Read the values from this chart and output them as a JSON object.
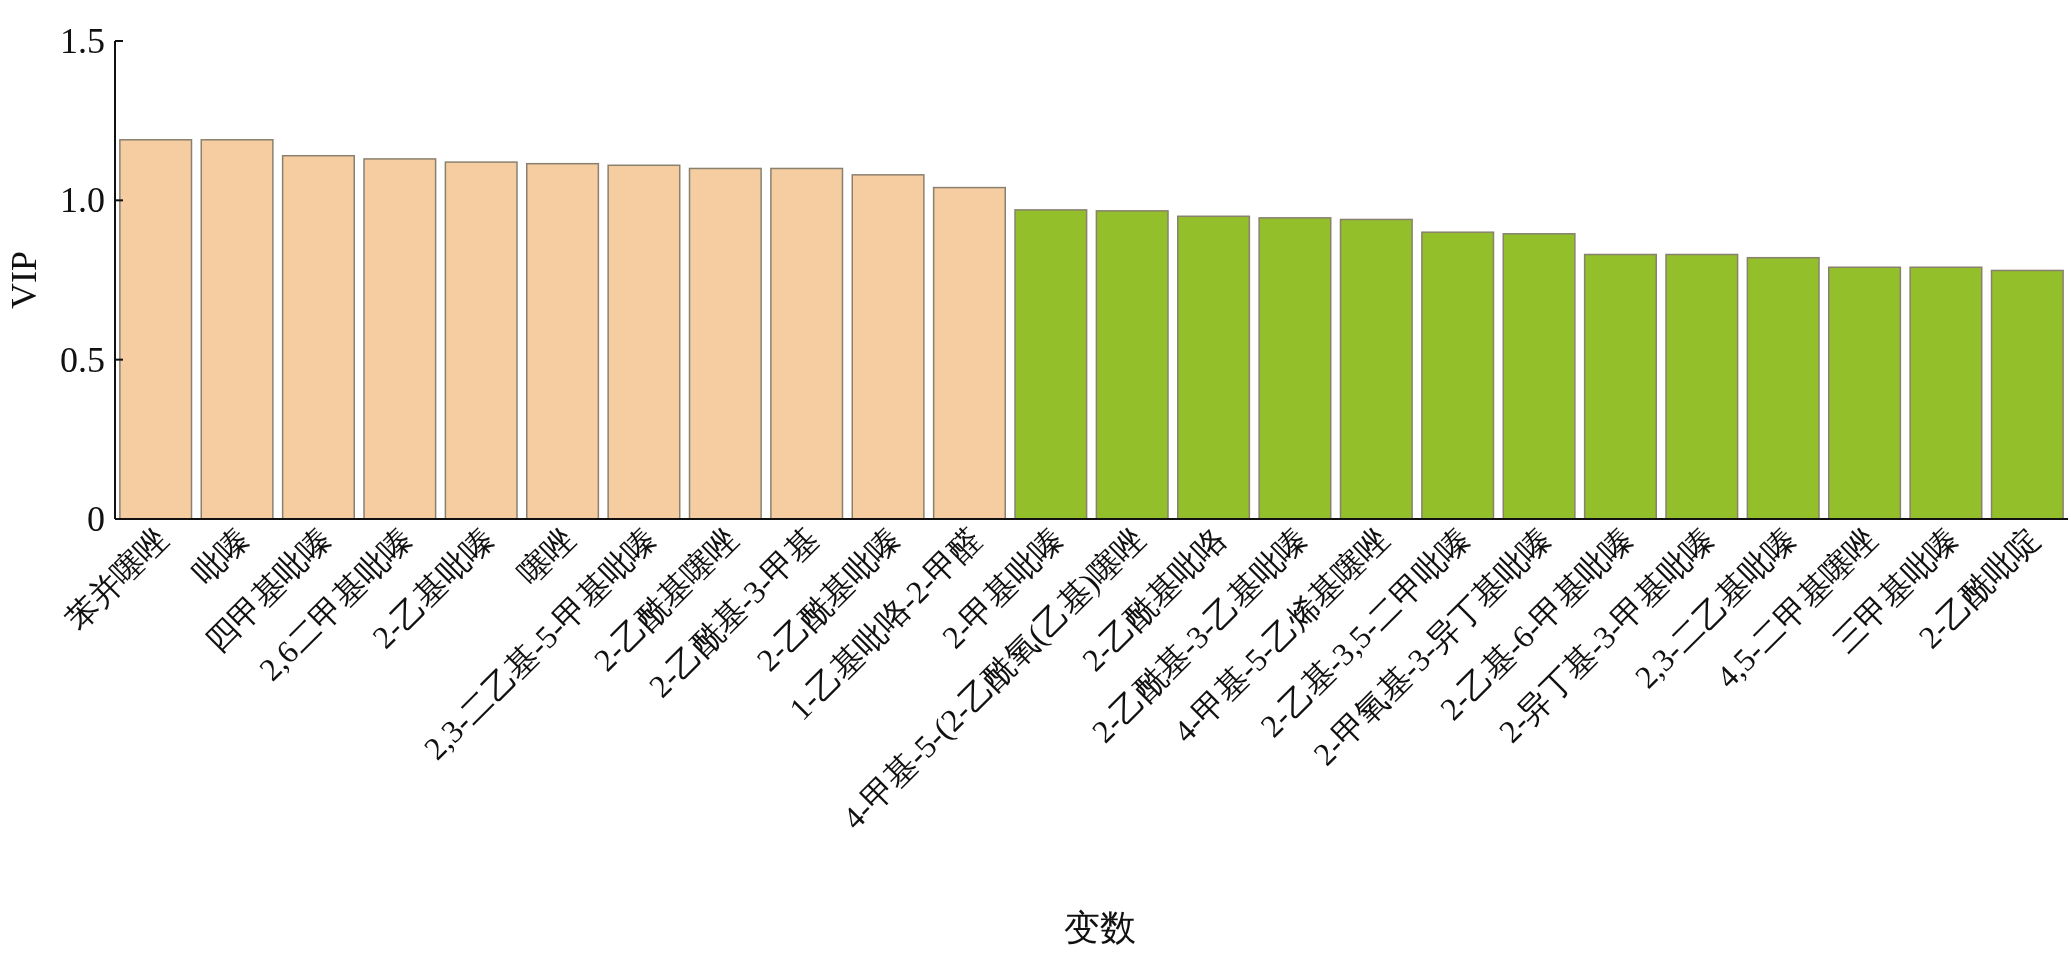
{
  "chart_data": {
    "type": "bar",
    "xlabel": "变数",
    "ylabel": "VIP",
    "categories": [
      "苯并噻唑",
      "吡嗪",
      "四甲基吡嗪",
      "2,6二甲基吡嗪",
      "2-乙基吡嗪",
      "噻唑",
      "2,3-二乙基-5-甲基吡嗪",
      "2-乙酰基噻唑",
      "2-乙酰基-3-甲基",
      "2-乙酰基吡嗪",
      "1-乙基吡咯-2-甲醛",
      "2-甲基吡嗪",
      "4-甲基-5-(2-乙酰氧(乙基)噻唑",
      "2-乙酰基吡咯",
      "2-乙酰基-3-乙基吡嗪",
      "4-甲基-5-乙烯基噻唑",
      "2-乙基-3,5-二甲吡嗪",
      "2-甲氧基-3-异丁基吡嗪",
      "2-乙基-6-甲基吡嗪",
      "2-异丁基-3-甲基吡嗪",
      "2,3-二乙基吡嗪",
      "4,5-二甲基噻唑",
      "三甲基吡嗪",
      "2-乙酰吡啶"
    ],
    "values": [
      1.19,
      1.19,
      1.14,
      1.13,
      1.12,
      1.115,
      1.11,
      1.1,
      1.1,
      1.08,
      1.04,
      0.97,
      0.967,
      0.95,
      0.945,
      0.94,
      0.9,
      0.895,
      0.83,
      0.83,
      0.82,
      0.79,
      0.79,
      0.78
    ],
    "colors": [
      "#f5cda0",
      "#f5cda0",
      "#f5cda0",
      "#f5cda0",
      "#f5cda0",
      "#f5cda0",
      "#f5cda0",
      "#f5cda0",
      "#f5cda0",
      "#f5cda0",
      "#f5cda0",
      "#92bf2a",
      "#92bf2a",
      "#92bf2a",
      "#92bf2a",
      "#92bf2a",
      "#92bf2a",
      "#92bf2a",
      "#92bf2a",
      "#92bf2a",
      "#92bf2a",
      "#92bf2a",
      "#92bf2a",
      "#92bf2a"
    ],
    "ylim": [
      0,
      1.5
    ],
    "yticks": [
      0,
      0.5,
      {
        "value": 1,
        "label": "1.0"
      },
      1.5
    ],
    "grid": false
  }
}
